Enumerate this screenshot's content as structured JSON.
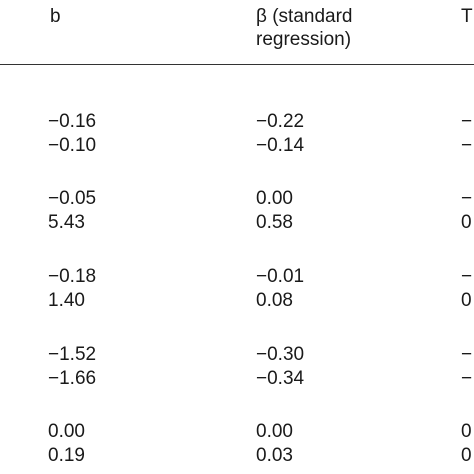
{
  "table": {
    "headers": {
      "col1": "b",
      "col2_line1": "β (standard",
      "col2_line2": "regression)",
      "col3": "T"
    },
    "rows": [
      {
        "b": "−0.16",
        "beta": "−0.22",
        "t": "−"
      },
      {
        "b": "−0.10",
        "beta": "−0.14",
        "t": "−"
      },
      {
        "b": "−0.05",
        "beta": "0.00",
        "t": "−"
      },
      {
        "b": "5.43",
        "beta": "0.58",
        "t": "0"
      },
      {
        "b": "−0.18",
        "beta": "−0.01",
        "t": "−"
      },
      {
        "b": "1.40",
        "beta": "0.08",
        "t": "0"
      },
      {
        "b": "−1.52",
        "beta": "−0.30",
        "t": "−"
      },
      {
        "b": "−1.66",
        "beta": "−0.34",
        "t": "−"
      },
      {
        "b": "0.00",
        "beta": "0.00",
        "t": "0"
      },
      {
        "b": "0.19",
        "beta": "0.03",
        "t": "0"
      }
    ]
  }
}
